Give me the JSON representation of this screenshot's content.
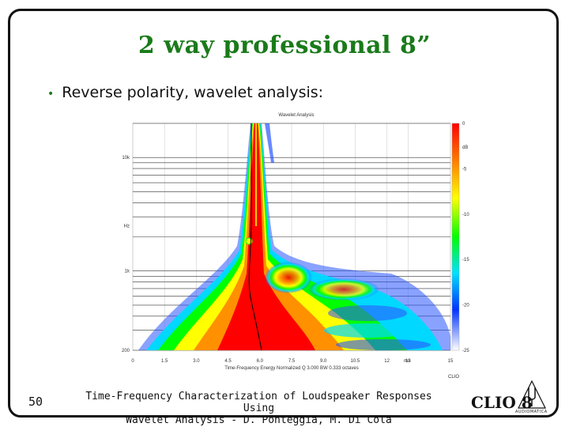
{
  "slide": {
    "title": "2 way professional 8”",
    "bullet": "Reverse polarity, wavelet analysis:",
    "page_number": "50",
    "footer_line1": "Time-Frequency Characterization of Loudspeaker Responses Using",
    "footer_line2": "Wavelet Analysis - D. Ponteggia, M. Di Cola",
    "logo_text": "CLIO 8",
    "logo_sub": "AUDIOMATICA",
    "bullet_color": "#1a7a1a",
    "title_color": "#1a7a1a"
  },
  "chart_data": {
    "type": "heatmap",
    "title": "Wavelet Analysis",
    "xlabel": "Time-Frequency Energy  Normalized Q 3.000 BW 0.333 octaves",
    "x_unit": "ms",
    "x_ticks": [
      "0",
      "1.5",
      "3.0",
      "4.5",
      "6.0",
      "7.5",
      "9.0",
      "10.5",
      "12",
      "13",
      "15"
    ],
    "xlim": [
      0,
      15
    ],
    "y_ticks": [
      "10k",
      "Hz",
      "1k",
      "200"
    ],
    "y_scale": "log",
    "ylim": [
      200,
      20000
    ],
    "colorbar_label": "dB",
    "colorbar_ticks": [
      "0",
      "-5",
      "-10",
      "-15",
      "-20",
      "-25"
    ],
    "colorbar_range": [
      -25,
      0
    ],
    "colormap": [
      "#ff0000",
      "#ff8800",
      "#ffff00",
      "#00ff00",
      "#00e0ff",
      "#0033ff",
      "#ffffff"
    ],
    "brand": "CLIO",
    "grid": true
  }
}
